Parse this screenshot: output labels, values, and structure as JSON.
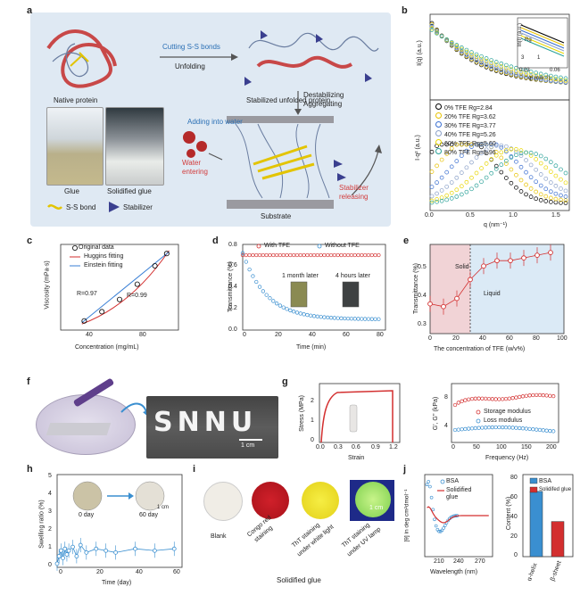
{
  "panel_a": {
    "letter": "a",
    "native_protein": "Native protein",
    "cutting": "Cutting S-S bonds",
    "unfolding": "Unfolding",
    "stabilized": "Stabilized unfolded protein",
    "adding_water": "Adding into water",
    "destabilizing": "Destabilizing",
    "aggregating": "Aggregating",
    "glue": "Glue",
    "solidified_glue": "Solidified glue",
    "water_entering_1": "Water",
    "water_entering_2": "entering",
    "stabilizer_releasing_1": "Stabilizer",
    "stabilizer_releasing_2": "releasing",
    "substrate": "Substrate",
    "legend_ss": "S-S bond",
    "legend_stabilizer": "Stabilizer"
  },
  "panel_b": {
    "letter": "b",
    "ylabel_top": "I(q) (a.u.)",
    "ylabel_bottom": "I·q² (a.u.)",
    "xlabel": "q (nm⁻¹)",
    "xticks": [
      "0.0",
      "0.5",
      "1.0",
      "1.5"
    ],
    "inset_ylabel": "ln(I) (a.u.)",
    "inset_xlabel": "q² (nm⁻²)",
    "inset_xticks": [
      "0.03",
      "0.06"
    ],
    "inset_rg": "Rg",
    "inset_3": "3",
    "inset_1": "1",
    "legend": [
      {
        "label": "0%   TFE Rg=2.84",
        "color": "#000000"
      },
      {
        "label": "20% TFE Rg=3.62",
        "color": "#e8c200"
      },
      {
        "label": "30% TFE Rg=3.77",
        "color": "#3a6fd1"
      },
      {
        "label": "40% TFE Rg=5.26",
        "color": "#8aa0c8"
      },
      {
        "label": "60% TFE Rg=5.60",
        "color": "#e8d600"
      },
      {
        "label": "80% TFE Rg=5.96",
        "color": "#2aa198"
      }
    ]
  },
  "panel_c": {
    "letter": "c",
    "ylabel": "Viscosity (mPa·s)",
    "xlabel": "Concentration (mg/mL)",
    "xticks": [
      "40",
      "80"
    ],
    "legend_data": "Original data",
    "legend_huggins": "Huggins fitting",
    "legend_einstein": "Einstein fitting",
    "r1": "R=0.97",
    "r2": "R=0.99"
  },
  "panel_d": {
    "letter": "d",
    "ylabel": "Transmittance (%)",
    "xlabel": "Time (min)",
    "yticks": [
      "0.0",
      "0.2",
      "0.4",
      "0.6",
      "0.8"
    ],
    "xticks": [
      "0",
      "20",
      "40",
      "60",
      "80"
    ],
    "legend_with": "With TFE",
    "legend_without": "Without TFE",
    "month_later": "1 month later",
    "hours_later": "4 hours later"
  },
  "panel_e": {
    "letter": "e",
    "ylabel": "Transmittance (%)",
    "xlabel": "The concentration of TFE (w/v%)",
    "yticks": [
      "0.3",
      "0.4",
      "0.5"
    ],
    "xticks": [
      "0",
      "20",
      "40",
      "60",
      "80",
      "100"
    ],
    "solid": "Solid",
    "liquid": "Liquid"
  },
  "panel_f": {
    "letter": "f",
    "text": "SNNU",
    "scale": "1 cm"
  },
  "panel_g": {
    "letter": "g",
    "ylabel": "Stress (MPa)",
    "xlabel": "Strain",
    "yticks": [
      "0",
      "1",
      "2"
    ],
    "xticks": [
      "0.0",
      "0.3",
      "0.6",
      "0.9",
      "1.2"
    ],
    "ylabel2": "G', G'' (kPa)",
    "xlabel2": "Frequency (Hz)",
    "yticks2": [
      "4",
      "8"
    ],
    "xticks2": [
      "0",
      "50",
      "100",
      "150",
      "200"
    ],
    "legend_storage": "Storage modulus",
    "legend_loss": "Loss modulus"
  },
  "panel_h": {
    "letter": "h",
    "ylabel": "Swelling ratio (%)",
    "xlabel": "Time (day)",
    "yticks": [
      "0",
      "1",
      "2",
      "3",
      "4",
      "5"
    ],
    "xticks": [
      "0",
      "20",
      "40",
      "60"
    ],
    "day0": "0 day",
    "day60": "60 day",
    "scale": "1 cm"
  },
  "panel_i": {
    "letter": "i",
    "blank": "Blank",
    "congo_1": "Congo red",
    "congo_2": "staining",
    "tht_white_1": "ThT staining",
    "tht_white_2": "under white light",
    "tht_uv_1": "ThT staining",
    "tht_uv_2": "under UV lamp",
    "scale": "1 cm",
    "caption": "Solidified glue"
  },
  "panel_j": {
    "letter": "j",
    "ylabel": "[θ] in deg cm²dmol⁻¹",
    "xlabel": "Wavelength (nm)",
    "xticks": [
      "210",
      "240",
      "270"
    ],
    "legend_bsa": "BSA",
    "legend_glue_1": "Solidified",
    "legend_glue_2": "glue",
    "ylabel_bar": "Content (%)",
    "yticks_bar": [
      "0",
      "20",
      "40",
      "60",
      "80"
    ],
    "bar_legend_bsa": "BSA",
    "bar_legend_glue": "Solidifed glue",
    "bar_categories": [
      "α-helix",
      "β-sheet"
    ]
  },
  "chart_data": [
    {
      "type": "scatter",
      "id": "c",
      "x": [
        20,
        35,
        50,
        65,
        80,
        90
      ],
      "values": [
        15,
        30,
        50,
        75,
        105,
        125
      ]
    },
    {
      "type": "line",
      "id": "d",
      "series": [
        {
          "name": "With TFE",
          "x": [
            0,
            80
          ],
          "values": [
            0.7,
            0.7
          ]
        },
        {
          "name": "Without TFE",
          "x": [
            0,
            10,
            20,
            30,
            40,
            60,
            80
          ],
          "values": [
            0.72,
            0.5,
            0.32,
            0.22,
            0.16,
            0.12,
            0.11
          ]
        }
      ]
    },
    {
      "type": "scatter",
      "id": "e",
      "x": [
        0,
        10,
        20,
        30,
        40,
        50,
        60,
        70,
        80,
        90
      ],
      "values": [
        0.36,
        0.35,
        0.38,
        0.45,
        0.5,
        0.52,
        0.52,
        0.53,
        0.54,
        0.55
      ]
    },
    {
      "type": "bar",
      "id": "j",
      "categories": [
        "α-helix",
        "β-sheet"
      ],
      "series": [
        {
          "name": "BSA",
          "values": [
            65,
            0
          ]
        },
        {
          "name": "Solidifed glue",
          "values": [
            0,
            35
          ]
        }
      ]
    }
  ]
}
